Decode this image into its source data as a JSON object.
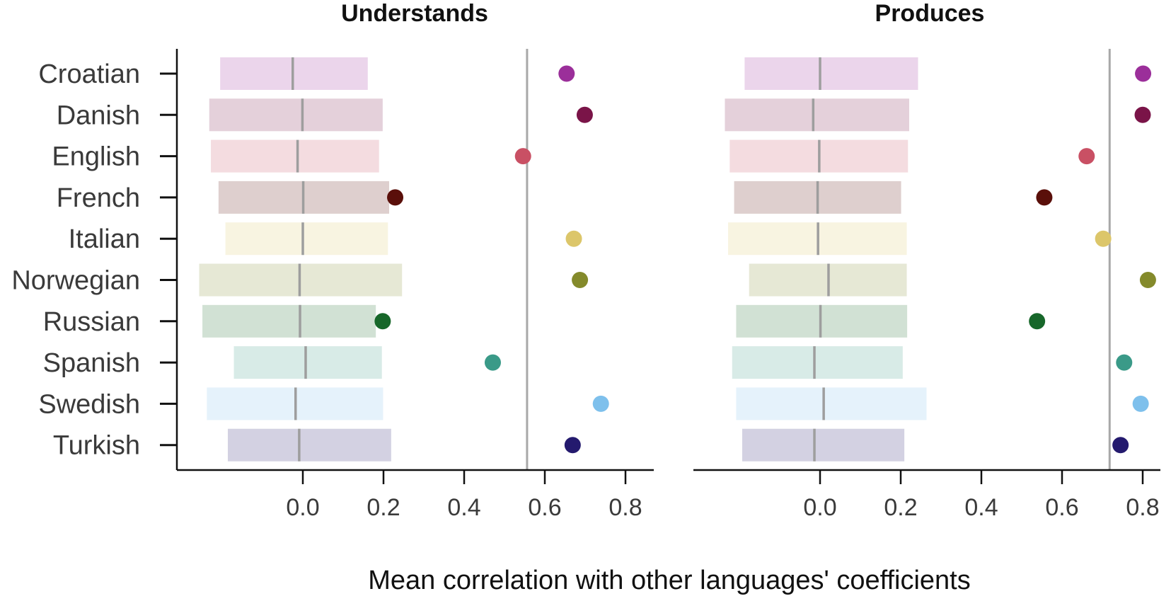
{
  "chart_data": {
    "type": "scatter",
    "xlabel": "Mean correlation with other languages' coefficients",
    "categories": [
      "Croatian",
      "Danish",
      "English",
      "French",
      "Italian",
      "Norwegian",
      "Russian",
      "Spanish",
      "Swedish",
      "Turkish"
    ],
    "colors": {
      "Croatian": "#9b2f9a",
      "Danish": "#7a1448",
      "English": "#c95064",
      "French": "#5a0f0a",
      "Italian": "#dcc66a",
      "Norwegian": "#848a2b",
      "Russian": "#17672a",
      "Spanish": "#3a9a88",
      "Swedish": "#7ec0ec",
      "Turkish": "#241a6e"
    },
    "xlim": [
      -0.31,
      0.87
    ],
    "xticks": [
      "0.0",
      "0.2",
      "0.4",
      "0.6",
      "0.8"
    ],
    "xtick_values": [
      0.0,
      0.2,
      0.4,
      0.6,
      0.8
    ],
    "panels": [
      {
        "title": "Understands",
        "reference_line": 0.556,
        "points": [
          0.654,
          0.699,
          0.546,
          0.229,
          0.672,
          0.687,
          0.198,
          0.471,
          0.739,
          0.669
        ],
        "interval_low": [
          -0.205,
          -0.232,
          -0.228,
          -0.209,
          -0.192,
          -0.257,
          -0.249,
          -0.171,
          -0.238,
          -0.186
        ],
        "interval_high": [
          0.161,
          0.198,
          0.189,
          0.214,
          0.211,
          0.246,
          0.181,
          0.196,
          0.199,
          0.219
        ],
        "center": [
          -0.025,
          -0.001,
          -0.013,
          0.001,
          0.0,
          -0.008,
          -0.007,
          0.007,
          -0.018,
          -0.009
        ]
      },
      {
        "title": "Produces",
        "reference_line": 0.718,
        "points": [
          0.801,
          0.8,
          0.661,
          0.556,
          0.702,
          0.813,
          0.538,
          0.754,
          0.795,
          0.745
        ],
        "interval_low": [
          -0.187,
          -0.236,
          -0.224,
          -0.213,
          -0.228,
          -0.176,
          -0.208,
          -0.218,
          -0.208,
          -0.193
        ],
        "interval_high": [
          0.243,
          0.221,
          0.218,
          0.201,
          0.215,
          0.215,
          0.216,
          0.205,
          0.264,
          0.209
        ],
        "center": [
          0.0,
          -0.017,
          -0.002,
          -0.006,
          -0.005,
          0.021,
          0.001,
          -0.014,
          0.009,
          -0.014
        ]
      }
    ]
  }
}
